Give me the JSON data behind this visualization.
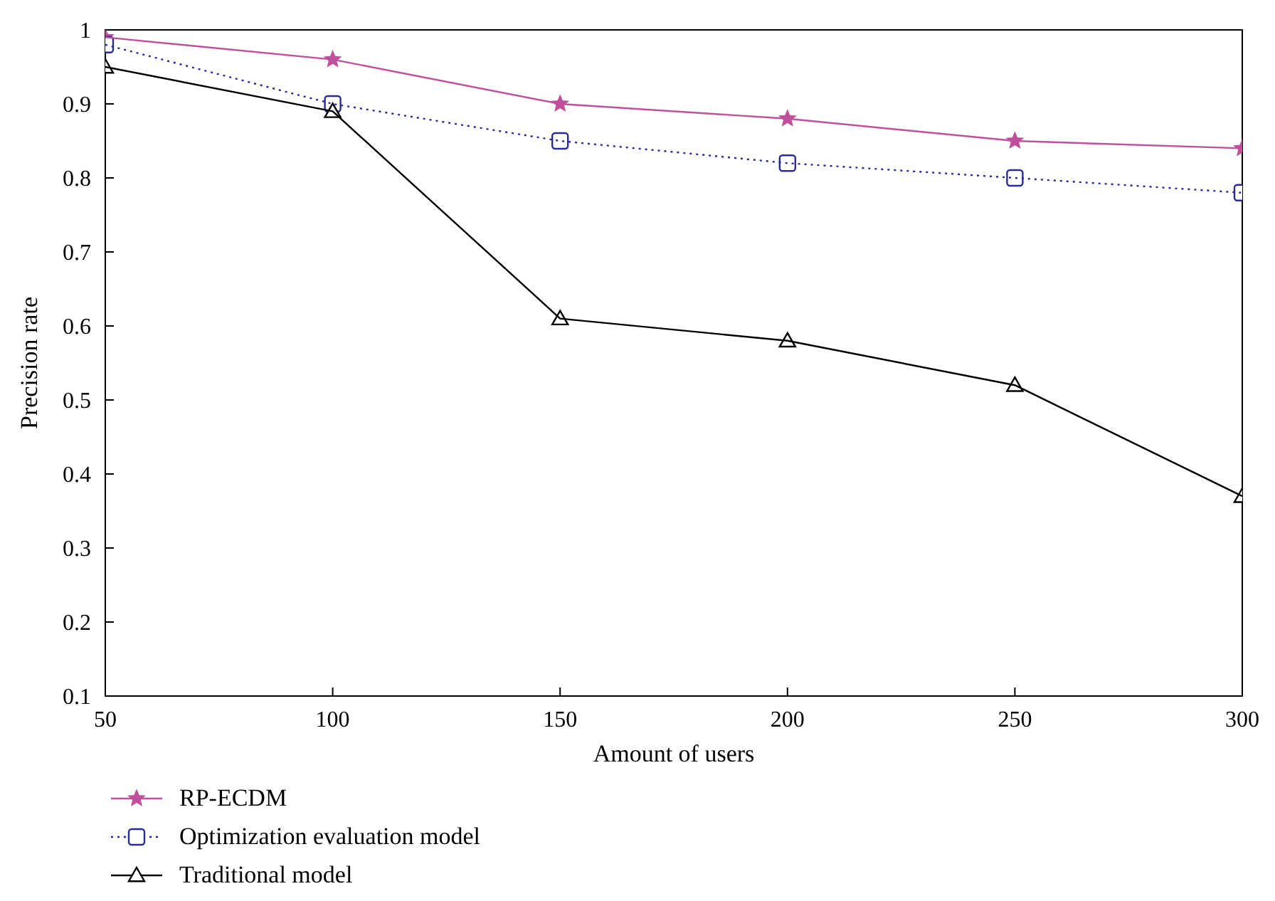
{
  "chart_data": {
    "type": "line",
    "xlabel": "Amount of users",
    "ylabel": "Precision rate",
    "x": [
      50,
      100,
      150,
      200,
      250,
      300
    ],
    "series": [
      {
        "name": "RP-ECDM",
        "color": "#c0509b",
        "marker": "star",
        "line_style": "solid",
        "values": [
          0.99,
          0.96,
          0.9,
          0.88,
          0.85,
          0.84
        ]
      },
      {
        "name": "Optimization evaluation model",
        "color": "#2a2a9a",
        "marker": "square",
        "line_style": "dotted",
        "values": [
          0.98,
          0.9,
          0.85,
          0.82,
          0.8,
          0.78
        ]
      },
      {
        "name": "Traditional model",
        "color": "#000000",
        "marker": "triangle",
        "line_style": "solid",
        "values": [
          0.95,
          0.89,
          0.61,
          0.58,
          0.52,
          0.37
        ]
      }
    ],
    "xlim": [
      50,
      300
    ],
    "xticks": [
      50,
      100,
      150,
      200,
      250,
      300
    ],
    "ylim": [
      0.1,
      1
    ],
    "yticks": [
      0.1,
      0.2,
      0.3,
      0.4,
      0.5,
      0.6,
      0.7,
      0.8,
      0.9,
      1
    ],
    "grid": false,
    "legend": "bottom left"
  }
}
